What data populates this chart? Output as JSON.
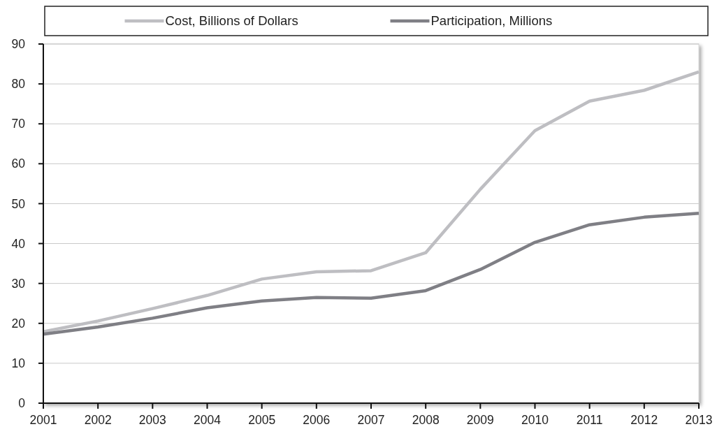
{
  "chart_data": {
    "type": "line",
    "x": [
      2001,
      2002,
      2003,
      2004,
      2005,
      2006,
      2007,
      2008,
      2009,
      2010,
      2011,
      2012,
      2013
    ],
    "xlim": [
      2001,
      2013
    ],
    "xticks": [
      2001,
      2002,
      2003,
      2004,
      2005,
      2006,
      2007,
      2008,
      2009,
      2010,
      2011,
      2012,
      2013
    ],
    "ylim": [
      0,
      90
    ],
    "yticks": [
      0,
      10,
      20,
      30,
      40,
      50,
      60,
      70,
      80,
      90
    ],
    "grid": "y",
    "legend": "top",
    "marker": "none",
    "line_style": "solid",
    "series": [
      {
        "name": "Cost, Billions of Dollars",
        "color": "#bebec2",
        "values": [
          17.9,
          20.6,
          23.7,
          27.0,
          31.1,
          32.9,
          33.2,
          37.7,
          53.6,
          68.3,
          75.7,
          78.4,
          83.0
        ]
      },
      {
        "name": "Participation, Millions",
        "color": "#7f7f85",
        "values": [
          17.3,
          19.1,
          21.3,
          23.9,
          25.6,
          26.5,
          26.3,
          28.2,
          33.5,
          40.3,
          44.7,
          46.6,
          47.6
        ]
      }
    ]
  }
}
